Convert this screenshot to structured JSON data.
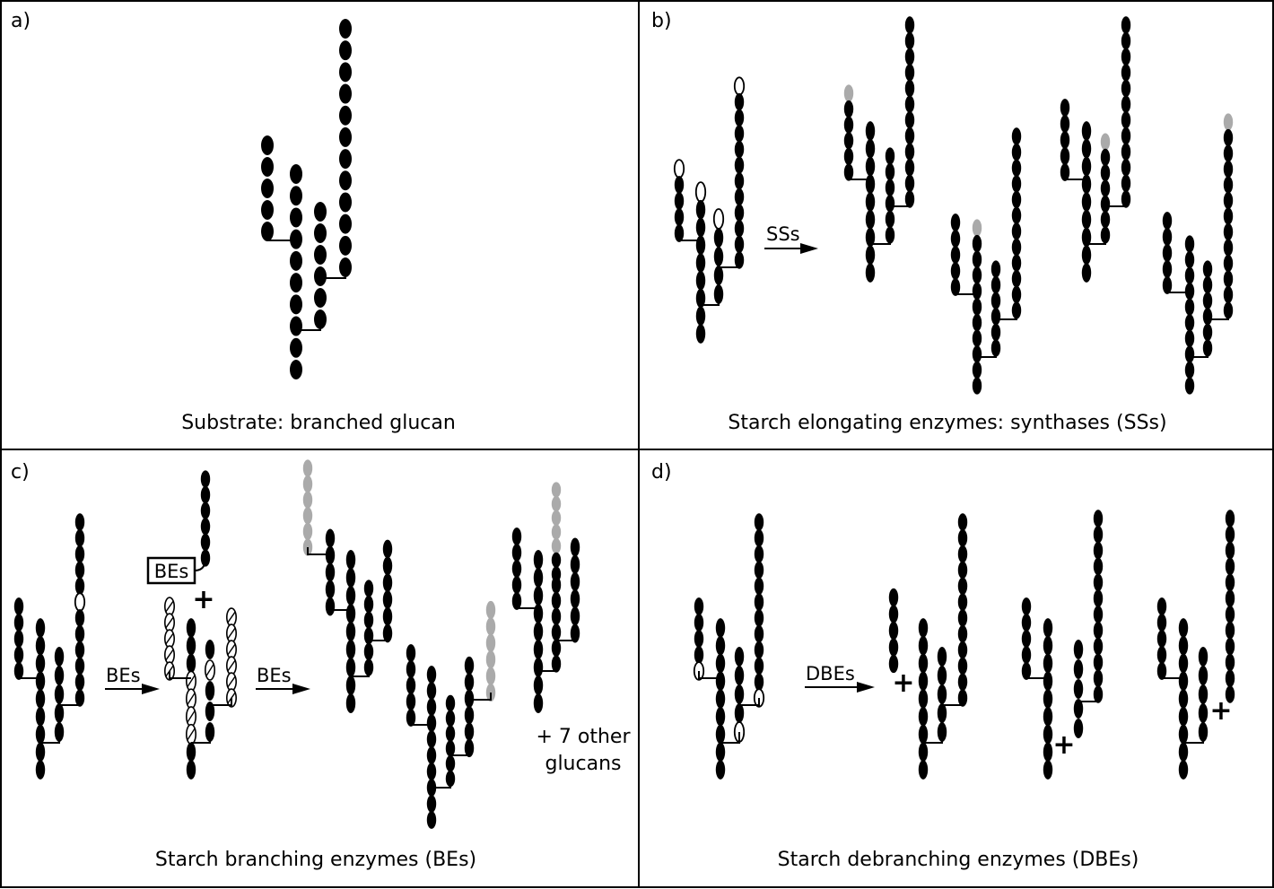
{
  "colors": {
    "background": "#ffffff",
    "glucose": "#000000",
    "new_glucose": "#aaaaaa",
    "stroke": "#000000"
  },
  "panels": {
    "a": {
      "label": "a)",
      "caption": "Substrate: branched glucan"
    },
    "b": {
      "label": "b)",
      "caption": "Starch elongating enzymes: synthases (SSs)",
      "arrow_label": "SSs"
    },
    "c": {
      "label": "c)",
      "caption": "Starch branching enzymes (BEs)",
      "arrow1_label": "BEs",
      "arrow2_label": "BEs",
      "box_label": "BEs",
      "plus": "+",
      "other_line1": "+ 7 other",
      "other_line2": "glucans"
    },
    "d": {
      "label": "d)",
      "caption": "Starch debranching enzymes (DBEs)",
      "arrow_label": "DBEs",
      "plus1": "+",
      "plus2": "+",
      "plus3": "+"
    }
  }
}
